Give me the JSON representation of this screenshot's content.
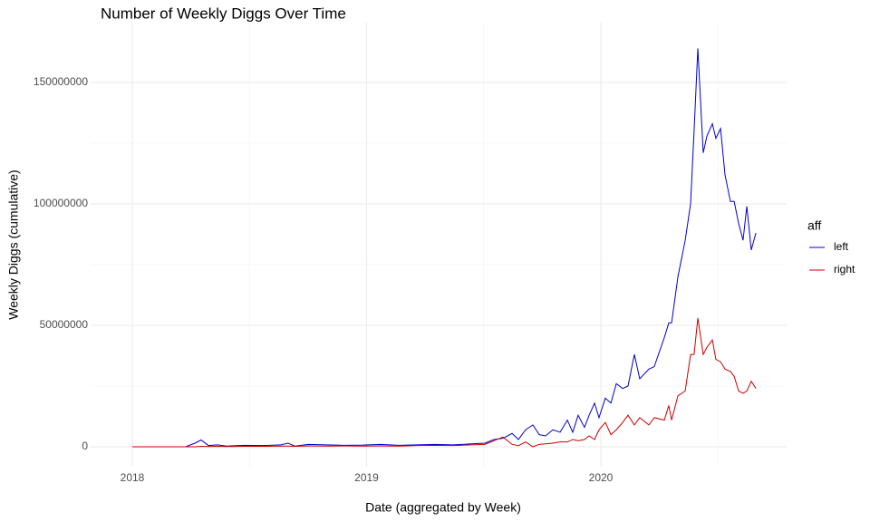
{
  "chart_data": {
    "type": "line",
    "title": "Number of Weekly Diggs Over Time",
    "x_label": "Date (aggregated by Week)",
    "y_label": "Weekly Diggs (cumulative)",
    "legend_title": "aff",
    "legend_position": "right",
    "grid": true,
    "xlim": [
      2017.822,
      2020.793
    ],
    "xticks": [
      2018,
      2019,
      2020
    ],
    "minor_xticks": [
      2018.5,
      2019.5,
      2020.5
    ],
    "ylim": [
      -8200000,
      174600000
    ],
    "yticks": [
      0,
      50000000,
      100000000,
      150000000
    ],
    "minor_yticks": [
      25000000,
      75000000,
      125000000
    ],
    "x": [
      2018.0,
      2018.228,
      2018.267,
      2018.294,
      2018.325,
      2018.364,
      2018.402,
      2018.48,
      2018.557,
      2018.634,
      2018.665,
      2018.693,
      2018.751,
      2018.828,
      2018.905,
      2018.983,
      2019.06,
      2019.137,
      2019.215,
      2019.292,
      2019.369,
      2019.447,
      2019.505,
      2019.544,
      2019.582,
      2019.621,
      2019.648,
      2019.679,
      2019.71,
      2019.737,
      2019.764,
      2019.795,
      2019.826,
      2019.857,
      2019.88,
      2019.903,
      2019.93,
      2019.95,
      2019.973,
      2019.992,
      2020.019,
      2020.043,
      2020.066,
      2020.093,
      2020.116,
      2020.143,
      2020.166,
      2020.205,
      2020.228,
      2020.271,
      2020.29,
      2020.302,
      2020.329,
      2020.36,
      2020.383,
      2020.398,
      2020.414,
      2020.437,
      2020.453,
      2020.476,
      2020.491,
      2020.511,
      2020.53,
      2020.553,
      2020.569,
      2020.588,
      2020.607,
      2020.623,
      2020.642,
      2020.662
    ],
    "series": [
      {
        "name": "left",
        "color": "#0000cd",
        "values": [
          0,
          0,
          1500000,
          2800000,
          500000,
          800000,
          300000,
          600000,
          500000,
          800000,
          1500000,
          300000,
          1000000,
          800000,
          600000,
          700000,
          1000000,
          600000,
          800000,
          1000000,
          800000,
          1200000,
          1500000,
          3000000,
          3500000,
          5500000,
          3000000,
          7000000,
          9000000,
          5000000,
          4500000,
          7000000,
          6000000,
          11000000,
          6000000,
          13000000,
          8000000,
          13000000,
          18000000,
          12000000,
          20000000,
          18000000,
          26000000,
          24000000,
          25000000,
          38000000,
          28000000,
          32000000,
          33000000,
          45000000,
          51000000,
          51000000,
          70000000,
          85000000,
          100000000,
          130000000,
          164000000,
          121000000,
          128000000,
          133000000,
          127000000,
          131000000,
          112000000,
          101000000,
          101000000,
          92000000,
          85000000,
          99000000,
          81000000,
          88000000
        ]
      },
      {
        "name": "right",
        "color": "#cd0000",
        "values": [
          0,
          0,
          0,
          200000,
          100000,
          200000,
          100000,
          200000,
          200000,
          300000,
          300000,
          200000,
          400000,
          300000,
          400000,
          300000,
          400000,
          300000,
          500000,
          600000,
          500000,
          800000,
          1000000,
          2500000,
          4000000,
          1000000,
          500000,
          2000000,
          0,
          1000000,
          1200000,
          1500000,
          2000000,
          2000000,
          3000000,
          2500000,
          3000000,
          4500000,
          3000000,
          7000000,
          10000000,
          5000000,
          7000000,
          10000000,
          13000000,
          9000000,
          12000000,
          9000000,
          12000000,
          11000000,
          17000000,
          11000000,
          21000000,
          23000000,
          38000000,
          38000000,
          53000000,
          38000000,
          41000000,
          44000000,
          36000000,
          35000000,
          32000000,
          31000000,
          29000000,
          23000000,
          22000000,
          23000000,
          27000000,
          24000000
        ]
      }
    ]
  }
}
